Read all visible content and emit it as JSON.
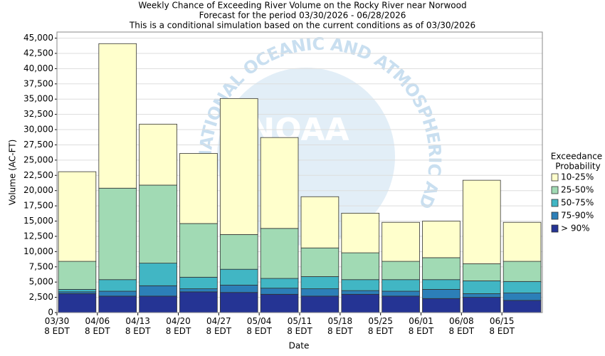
{
  "chart_data": {
    "type": "stacked_bar",
    "title": "Weekly Chance of Exceeding River Volume on the Rocky River near Norwood",
    "subtitle": [
      "Forecast for the period 03/30/2026 - 06/28/2026",
      "This is a conditional simulation based on the current conditions as of 03/30/2026"
    ],
    "x_label": "Date",
    "y_label": "Volume (AC-FT)",
    "watermark": "NOAA",
    "watermark_arc": "NATIONAL OCEANIC AND ATMOSPHERIC ADMINISTRATION",
    "legend_title": [
      "Exceedance",
      "Probability"
    ],
    "legend_position": "right",
    "grid": true,
    "categories": [
      [
        "03/30",
        "8 EDT"
      ],
      [
        "04/06",
        "8 EDT"
      ],
      [
        "04/13",
        "8 EDT"
      ],
      [
        "04/20",
        "8 EDT"
      ],
      [
        "04/27",
        "8 EDT"
      ],
      [
        "05/04",
        "8 EDT"
      ],
      [
        "05/11",
        "8 EDT"
      ],
      [
        "05/18",
        "8 EDT"
      ],
      [
        "05/25",
        "8 EDT"
      ],
      [
        "06/01",
        "8 EDT"
      ],
      [
        "06/08",
        "8 EDT"
      ],
      [
        "06/15",
        "8 EDT"
      ]
    ],
    "series": [
      {
        "name": "> 90%",
        "color": "#253494",
        "values": [
          3100,
          2700,
          2700,
          3400,
          3300,
          3000,
          2700,
          3000,
          2700,
          2300,
          2500,
          2000
        ]
      },
      {
        "name": "75-90%",
        "color": "#2c7fb8",
        "values": [
          300,
          800,
          1700,
          500,
          1200,
          1000,
          1200,
          600,
          800,
          1500,
          600,
          1200
        ]
      },
      {
        "name": "50-75%",
        "color": "#41b6c4",
        "values": [
          400,
          1900,
          3700,
          1900,
          2600,
          1600,
          2000,
          1800,
          1900,
          1600,
          2100,
          1900
        ]
      },
      {
        "name": "25-50%",
        "color": "#a1dab4",
        "values": [
          4600,
          15000,
          12800,
          8800,
          5700,
          8200,
          4700,
          4400,
          3000,
          3600,
          2800,
          3300
        ]
      },
      {
        "name": "10-25%",
        "color": "#ffffcc",
        "values": [
          14700,
          23700,
          10000,
          11500,
          22300,
          14900,
          8400,
          6500,
          6400,
          6000,
          13700,
          6400
        ]
      }
    ],
    "ylim": [
      0,
      46000
    ],
    "yticks": [
      0,
      {
        "value": 2500,
        "label": "2,500"
      },
      {
        "value": 5000,
        "label": "5,000"
      },
      {
        "value": 7500,
        "label": "7,500"
      },
      {
        "value": 10000,
        "label": "10,000"
      },
      {
        "value": 12500,
        "label": "12,500"
      },
      {
        "value": 15000,
        "label": "15,000"
      },
      {
        "value": 17500,
        "label": "17,500"
      },
      {
        "value": 20000,
        "label": "20,000"
      },
      {
        "value": 22500,
        "label": "22,500"
      },
      {
        "value": 25000,
        "label": "25,000"
      },
      {
        "value": 27500,
        "label": "27,500"
      },
      {
        "value": 30000,
        "label": "30,000"
      },
      {
        "value": 32500,
        "label": "32,500"
      },
      {
        "value": 35000,
        "label": "35,000"
      },
      {
        "value": 37500,
        "label": "37,500"
      },
      {
        "value": 40000,
        "label": "40,000"
      },
      {
        "value": 42500,
        "label": "42,500"
      },
      {
        "value": 45000,
        "label": "45,000"
      }
    ]
  }
}
